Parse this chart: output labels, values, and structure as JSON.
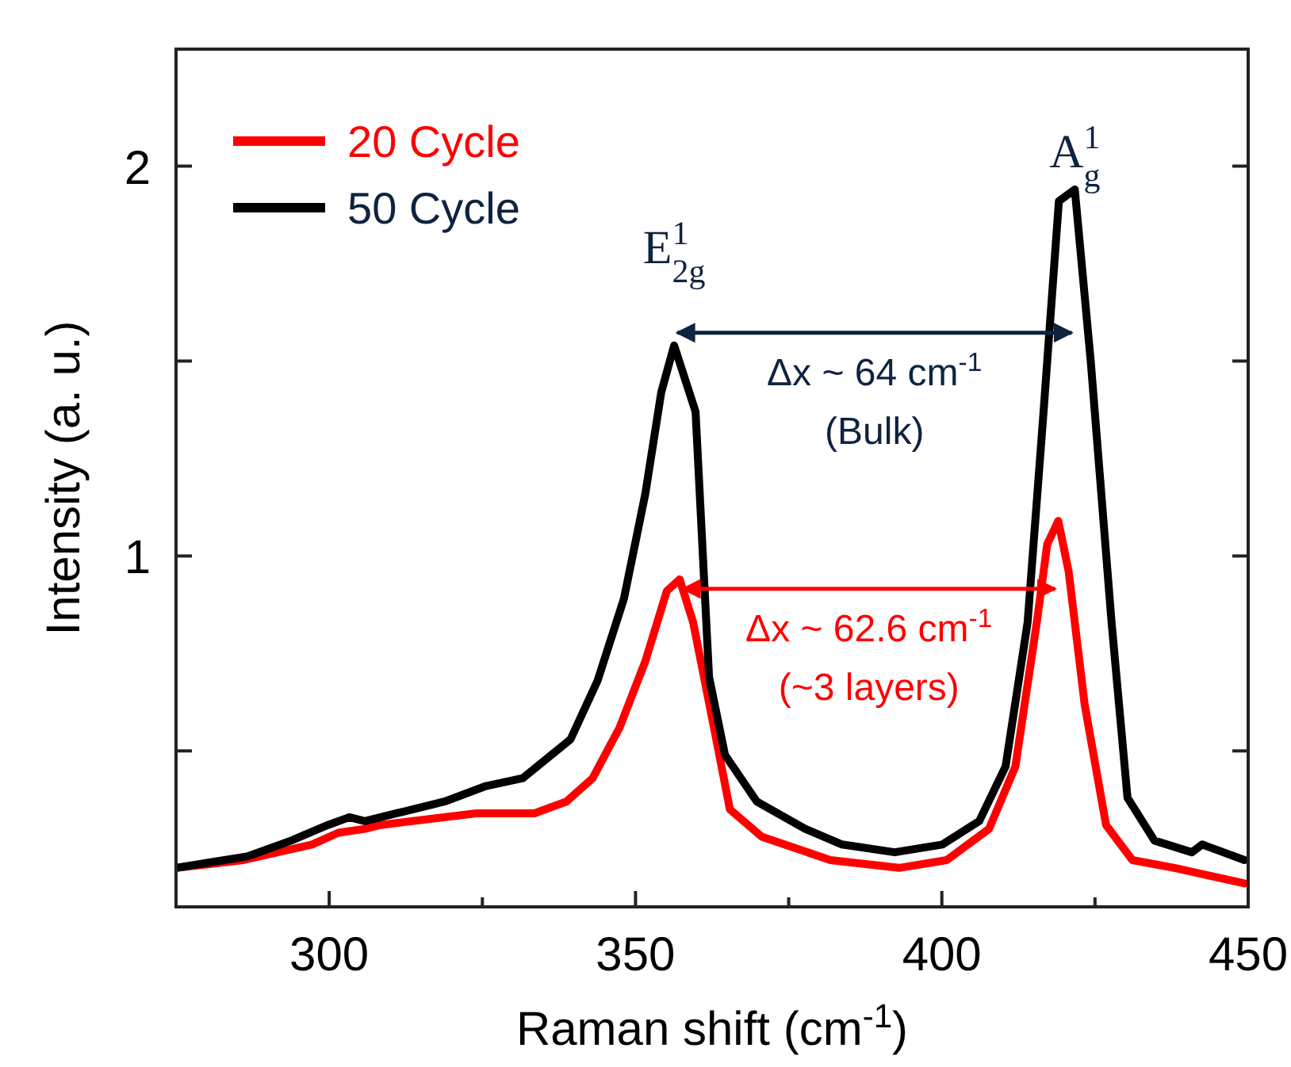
{
  "chart_data": {
    "type": "line",
    "xlabel": "Raman shift (cm$^{-1}$)",
    "ylabel": "Intensity (a. u.)",
    "xlim": [
      275,
      450
    ],
    "ylim": [
      0.1,
      2.3
    ],
    "xticks": [
      300,
      {
        "value": 325,
        "label": null
      },
      350,
      {
        "value": 375,
        "label": null
      },
      400,
      {
        "value": 425,
        "label": null
      },
      450
    ],
    "yticks": [
      {
        "value": 0.5,
        "label": null
      },
      1,
      {
        "value": 1.5,
        "label": null
      },
      2
    ],
    "legend": "top left",
    "grid": false,
    "marker": "none",
    "line_style": "solid",
    "series": [
      {
        "name": "20 Cycle",
        "color": "#ff0000",
        "x": [
          275,
          286,
          297.2,
          301.5,
          305.8,
          308.4,
          324,
          333.5,
          338.7,
          343,
          347.4,
          351.6,
          355.1,
          357.2,
          359.4,
          362.8,
          365.4,
          370.6,
          381.8,
          393,
          400.8,
          407.7,
          412,
          415.5,
          417.2,
          419,
          420.7,
          423.3,
          426.8,
          431.1,
          438,
          449.4
        ],
        "values": [
          0.2,
          0.22,
          0.26,
          0.29,
          0.3,
          0.31,
          0.34,
          0.34,
          0.37,
          0.43,
          0.56,
          0.73,
          0.91,
          0.94,
          0.83,
          0.56,
          0.35,
          0.28,
          0.22,
          0.2,
          0.22,
          0.3,
          0.46,
          0.83,
          1.03,
          1.09,
          0.96,
          0.62,
          0.31,
          0.22,
          0.2,
          0.16
        ]
      },
      {
        "name": "50 Cycle",
        "color": "#000000",
        "x": [
          275,
          286.8,
          293.8,
          299.8,
          303.3,
          305.8,
          311,
          318.8,
          325.6,
          331.6,
          339.4,
          343.8,
          348.1,
          351.6,
          354.2,
          356.3,
          359.8,
          362,
          364.6,
          369.8,
          377.7,
          383.7,
          392.3,
          400.1,
          406.1,
          410.4,
          414,
          416.6,
          419.1,
          421.7,
          424.3,
          427.7,
          430.3,
          434.7,
          440.8,
          442.5,
          449.4
        ],
        "values": [
          0.2,
          0.23,
          0.27,
          0.31,
          0.33,
          0.32,
          0.34,
          0.37,
          0.41,
          0.43,
          0.53,
          0.68,
          0.89,
          1.16,
          1.42,
          1.54,
          1.37,
          0.69,
          0.49,
          0.37,
          0.3,
          0.26,
          0.24,
          0.26,
          0.32,
          0.46,
          0.83,
          1.37,
          1.91,
          1.94,
          1.5,
          0.83,
          0.38,
          0.27,
          0.24,
          0.26,
          0.22
        ]
      }
    ],
    "annotations": [
      "E$^{1}$$_{2g}$",
      "A$^{1}$$_{g}$",
      "Δx ~ 64 cm$^{-1}$",
      "(Bulk)",
      "Δx ~ 62.6 cm$^{-1}$",
      "(~3 layers)"
    ]
  }
}
